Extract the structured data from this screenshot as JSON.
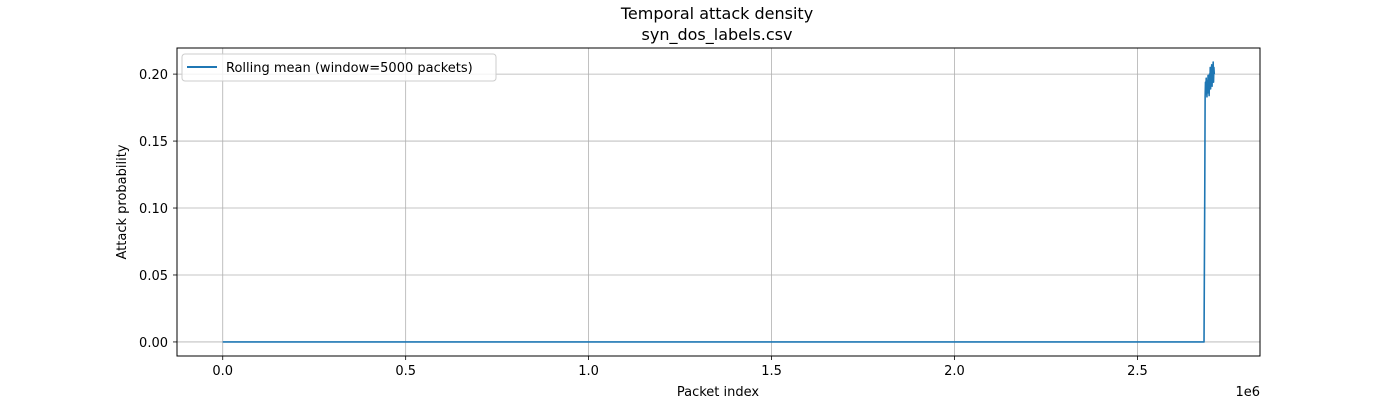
{
  "chart_data": {
    "type": "line",
    "title": "Temporal attack density",
    "subtitle": "syn_dos_labels.csv",
    "xlabel": "Packet index",
    "ylabel": "Attack probability",
    "x_offset_label": "1e6",
    "xlim": [
      -125000,
      2835000
    ],
    "ylim": [
      -0.0105,
      0.2195
    ],
    "xticks": [
      0,
      500000,
      1000000,
      1500000,
      2000000,
      2500000
    ],
    "xtick_labels": [
      "0.0",
      "0.5",
      "1.0",
      "1.5",
      "2.0",
      "2.5"
    ],
    "yticks": [
      0.0,
      0.05,
      0.1,
      0.15,
      0.2
    ],
    "ytick_labels": [
      "0.00",
      "0.05",
      "0.10",
      "0.15",
      "0.20"
    ],
    "grid": true,
    "legend_position": "top-left",
    "series": [
      {
        "name": "Rolling mean (window=5000 packets)",
        "color": "#1f77b4",
        "x": [
          0,
          2682000,
          2684000,
          2685000,
          2686000,
          2687000,
          2688000,
          2689000,
          2690000,
          2691000,
          2692000,
          2693000,
          2694000,
          2695000,
          2696000,
          2697000,
          2698000,
          2699000,
          2700000,
          2701000,
          2702000,
          2703000,
          2704000,
          2705000,
          2706000,
          2707000,
          2708000,
          2709000,
          2710000
        ],
        "y": [
          0.0,
          0.0,
          0.11,
          0.183,
          0.194,
          0.186,
          0.197,
          0.188,
          0.183,
          0.195,
          0.187,
          0.199,
          0.186,
          0.192,
          0.184,
          0.2,
          0.19,
          0.205,
          0.189,
          0.198,
          0.193,
          0.207,
          0.191,
          0.203,
          0.196,
          0.209,
          0.194,
          0.205,
          0.2
        ]
      }
    ]
  }
}
